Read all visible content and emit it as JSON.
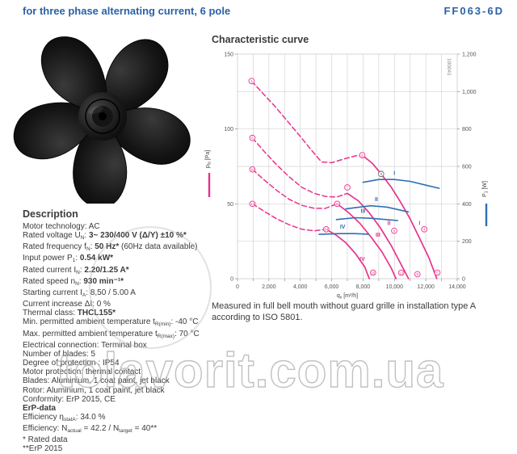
{
  "header": {
    "title": "for three phase alternating current, 6 pole",
    "model": "FF063-6D"
  },
  "description": {
    "heading": "Description",
    "lines": [
      [
        {
          "t": "Motor technology: AC"
        }
      ],
      [
        {
          "t": "Rated voltage U"
        },
        {
          "t": "N",
          "s": 1
        },
        {
          "t": ": "
        },
        {
          "t": "3~ 230/400 V (Δ/Y) ±10 %*",
          "b": 1
        }
      ],
      [
        {
          "t": "Rated frequency f"
        },
        {
          "t": "N",
          "s": 1
        },
        {
          "t": ": "
        },
        {
          "t": "50 Hz*",
          "b": 1
        },
        {
          "t": " (60Hz data available)"
        }
      ],
      [
        {
          "t": "Input power P"
        },
        {
          "t": "1",
          "s": 1
        },
        {
          "t": ": "
        },
        {
          "t": "0.54 kW*",
          "b": 1
        }
      ],
      [
        {
          "t": "Rated current I"
        },
        {
          "t": "N",
          "s": 1
        },
        {
          "t": ": "
        },
        {
          "t": "2.20/1.25 A*",
          "b": 1
        }
      ],
      [
        {
          "t": "Rated speed n"
        },
        {
          "t": "N",
          "s": 1
        },
        {
          "t": ": "
        },
        {
          "t": "930 min⁻¹*",
          "b": 1
        }
      ],
      [
        {
          "t": "Starting current I"
        },
        {
          "t": "A",
          "s": 1
        },
        {
          "t": ": 8,50 / 5.00 A"
        }
      ],
      [
        {
          "t": "Current increase ΔI: 0 %"
        }
      ],
      [
        {
          "t": "Thermal class: "
        },
        {
          "t": "THCL155*",
          "b": 1
        }
      ],
      [
        {
          "t": "Min. permitted ambient temperature t"
        },
        {
          "t": "R(min)",
          "s": 1
        },
        {
          "t": ": -40 °C"
        }
      ],
      [
        {
          "t": "Max. permitted ambient temperature t"
        },
        {
          "t": "R(max)",
          "s": 1
        },
        {
          "t": ": 70 °C"
        }
      ],
      [
        {
          "t": "Electrical connection: Terminal box"
        }
      ],
      [
        {
          "t": "Number of blades: 5"
        }
      ],
      [
        {
          "t": "Degree of protection : IP54"
        }
      ],
      [
        {
          "t": "Motor protection: thermal contact"
        }
      ],
      [
        {
          "t": "Blades: Aluminium, 1 coat paint, jet black"
        }
      ],
      [
        {
          "t": "Rotor: Aluminium, 1 coat paint, jet black"
        }
      ],
      [
        {
          "t": "Conformity: ErP 2015, CE"
        }
      ],
      [
        {
          "t": "ErP-data",
          "b": 1
        }
      ],
      [
        {
          "t": "Efficiency η"
        },
        {
          "t": "statA",
          "s": 1
        },
        {
          "t": ": 34.0 %"
        }
      ],
      [
        {
          "t": "Efficiency: N"
        },
        {
          "t": "actual",
          "s": 1
        },
        {
          "t": " = 42.2 / N"
        },
        {
          "t": "target",
          "s": 1
        },
        {
          "t": " = 40**"
        }
      ],
      [
        {
          "t": "* Rated data"
        }
      ],
      [
        {
          "t": "**ErP 2015"
        }
      ]
    ]
  },
  "chart": {
    "title": "Characteristic curve",
    "caption": "Measured in full bell mouth without guard grille in installation type A according to ISO 5801.",
    "stamp": "100041",
    "xlabel": {
      "base": "q",
      "sub": "v",
      "unit": "[m³/h]"
    },
    "ylabel_left": {
      "base": "p",
      "sub": "fa",
      "unit": "[Pa]"
    },
    "ylabel_right": {
      "base": "P",
      "sub": "1",
      "unit": "[W]"
    }
  },
  "chart_data": {
    "type": "line",
    "xlim": [
      0,
      14000
    ],
    "ylim_left": [
      0,
      150
    ],
    "ylim_right": [
      0,
      1200
    ],
    "grid_step_x": 1000,
    "grid_step_y_pa": 25,
    "xticks": [
      0,
      2000,
      4000,
      6000,
      8000,
      10000,
      12000,
      14000
    ],
    "yticks_left": [
      0,
      50,
      100,
      150
    ],
    "yticks_right": [
      0,
      200,
      400,
      600,
      800,
      1000,
      1200
    ],
    "fan_curves": [
      {
        "name": "I",
        "dashed": [
          [
            900,
            132
          ],
          [
            1600,
            124
          ],
          [
            2400,
            115
          ],
          [
            3200,
            105
          ],
          [
            4000,
            95
          ],
          [
            4700,
            86
          ],
          [
            5350,
            78
          ],
          [
            6000,
            77.5
          ],
          [
            6800,
            80
          ],
          [
            7500,
            82
          ],
          [
            7950,
            82.5
          ]
        ],
        "solid": [
          [
            7950,
            82.5
          ],
          [
            8600,
            77
          ],
          [
            9150,
            70
          ],
          [
            9800,
            61
          ],
          [
            10400,
            51
          ],
          [
            11000,
            40
          ],
          [
            11600,
            27
          ],
          [
            12200,
            14
          ],
          [
            12700,
            0
          ]
        ],
        "label_at": [
          11600,
          36
        ]
      },
      {
        "name": "II",
        "dashed": [
          [
            950,
            94
          ],
          [
            1700,
            85
          ],
          [
            2500,
            76
          ],
          [
            3300,
            68
          ],
          [
            4100,
            61
          ],
          [
            4900,
            57
          ],
          [
            5600,
            55
          ],
          [
            6300,
            54.5
          ],
          [
            7000,
            57
          ]
        ],
        "solid": [
          [
            7000,
            57
          ],
          [
            7700,
            52
          ],
          [
            8400,
            44
          ],
          [
            9100,
            34
          ],
          [
            9800,
            22
          ],
          [
            10400,
            10
          ],
          [
            10900,
            0
          ]
        ],
        "label_at": [
          9650,
          36
        ]
      },
      {
        "name": "III",
        "dashed": [
          [
            950,
            73
          ],
          [
            1700,
            66
          ],
          [
            2500,
            59
          ],
          [
            3300,
            53
          ],
          [
            4100,
            49
          ],
          [
            4900,
            47
          ],
          [
            5600,
            47
          ],
          [
            6350,
            50
          ]
        ],
        "solid": [
          [
            6350,
            50
          ],
          [
            7100,
            44
          ],
          [
            7800,
            37
          ],
          [
            8500,
            28
          ],
          [
            9200,
            18
          ],
          [
            9800,
            7
          ],
          [
            10100,
            0
          ]
        ],
        "label_at": [
          8950,
          28
        ]
      },
      {
        "name": "IV",
        "dashed": [
          [
            950,
            50
          ],
          [
            1700,
            45
          ],
          [
            2500,
            40
          ],
          [
            3300,
            36
          ],
          [
            4100,
            33
          ],
          [
            4900,
            32
          ],
          [
            5650,
            33
          ]
        ],
        "solid": [
          [
            5650,
            33
          ],
          [
            6300,
            29
          ],
          [
            6900,
            24
          ],
          [
            7500,
            17
          ],
          [
            8100,
            8
          ],
          [
            8400,
            0
          ]
        ],
        "label_at": [
          7950,
          12
        ]
      }
    ],
    "power_curves": [
      {
        "name": "I",
        "points": [
          [
            8000,
            515
          ],
          [
            9000,
            530
          ],
          [
            10000,
            530
          ],
          [
            11000,
            520
          ],
          [
            12000,
            500
          ],
          [
            12850,
            483
          ]
        ],
        "label_at": [
          10000,
          555
        ]
      },
      {
        "name": "II",
        "points": [
          [
            6900,
            373
          ],
          [
            8000,
            385
          ],
          [
            8500,
            390
          ],
          [
            9500,
            383
          ],
          [
            10885,
            357
          ]
        ],
        "label_at": [
          8850,
          415
        ]
      },
      {
        "name": "III",
        "points": [
          [
            6300,
            316
          ],
          [
            7500,
            326
          ],
          [
            8500,
            323
          ],
          [
            10200,
            311
          ]
        ],
        "label_at": [
          8000,
          352
        ]
      },
      {
        "name": "IV",
        "points": [
          [
            5200,
            237
          ],
          [
            6500,
            241
          ],
          [
            7500,
            241
          ],
          [
            8350,
            238
          ]
        ],
        "label_at": [
          6700,
          268
        ]
      }
    ],
    "markers": [
      {
        "n": "1",
        "q": 900,
        "p": 132
      },
      {
        "n": "2",
        "q": 7950,
        "p": 82.5
      },
      {
        "n": "3",
        "q": 9150,
        "p": 70,
        "dark": 1
      },
      {
        "n": "4",
        "q": 11900,
        "p": 33
      },
      {
        "n": "5",
        "q": 12735,
        "p": 4
      },
      {
        "n": "6",
        "q": 950,
        "p": 94
      },
      {
        "n": "7",
        "q": 7000,
        "p": 61
      },
      {
        "n": "8",
        "q": 9985,
        "p": 32
      },
      {
        "n": "9",
        "q": 11465,
        "p": 3
      },
      {
        "n": "10",
        "q": 950,
        "p": 73
      },
      {
        "n": "11",
        "q": 6350,
        "p": 50
      },
      {
        "n": "12",
        "q": 10435,
        "p": 4
      },
      {
        "n": "13",
        "q": 950,
        "p": 50
      },
      {
        "n": "14",
        "q": 5650,
        "p": 33
      },
      {
        "n": "15",
        "q": 8635,
        "p": 4
      }
    ],
    "legend_position": "axis-titles-vertical",
    "grid": true
  },
  "watermark": {
    "text": "tolavorit.com.ua"
  },
  "colors": {
    "accent_blue": "#2b62a7",
    "curve_pink": "#e8338c",
    "curve_blue": "#2f6eb5",
    "grid": "#d4d4d4",
    "text": "#3b3b3b",
    "watermark": "#acacac"
  }
}
